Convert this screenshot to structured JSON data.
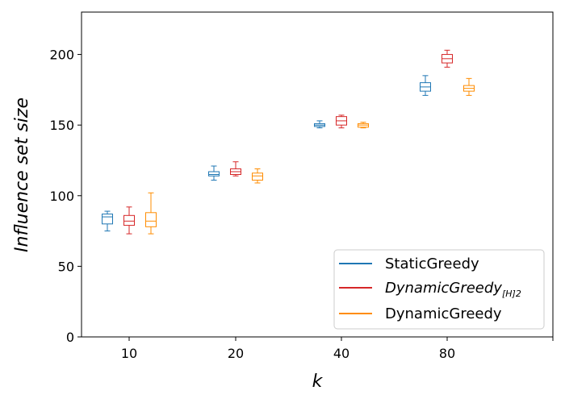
{
  "chart_data": {
    "type": "box",
    "xlabel": "k",
    "ylabel": "Influence set size",
    "ylim": [
      0,
      230
    ],
    "y_ticks": [
      0,
      50,
      100,
      150,
      200
    ],
    "categories": [
      "10",
      "20",
      "40",
      "80"
    ],
    "grid": false,
    "legend_position": "bottom-right",
    "series": [
      {
        "name": "StaticGreedy",
        "color": "#1f77b4",
        "boxes": [
          {
            "whisker_low": 75,
            "q1": 80,
            "median": 85,
            "q3": 87,
            "whisker_high": 89
          },
          {
            "whisker_low": 111,
            "q1": 114,
            "median": 115,
            "q3": 117,
            "whisker_high": 121
          },
          {
            "whisker_low": 148,
            "q1": 149,
            "median": 150,
            "q3": 151,
            "whisker_high": 153
          },
          {
            "whisker_low": 171,
            "q1": 174,
            "median": 177,
            "q3": 180,
            "whisker_high": 185
          }
        ]
      },
      {
        "name": "DynamicGreedy",
        "name_subscript": "[H]2",
        "color": "#d62728",
        "boxes": [
          {
            "whisker_low": 73,
            "q1": 79,
            "median": 82,
            "q3": 86,
            "whisker_high": 92
          },
          {
            "whisker_low": 114,
            "q1": 115,
            "median": 117,
            "q3": 119,
            "whisker_high": 124
          },
          {
            "whisker_low": 148,
            "q1": 150,
            "median": 153,
            "q3": 156,
            "whisker_high": 157
          },
          {
            "whisker_low": 191,
            "q1": 194,
            "median": 197,
            "q3": 200,
            "whisker_high": 203
          }
        ]
      },
      {
        "name": "DynamicGreedy",
        "color": "#ff8c00",
        "boxes": [
          {
            "whisker_low": 73,
            "q1": 78,
            "median": 82,
            "q3": 88,
            "whisker_high": 102
          },
          {
            "whisker_low": 109,
            "q1": 111,
            "median": 114,
            "q3": 116,
            "whisker_high": 119
          },
          {
            "whisker_low": 148,
            "q1": 148.5,
            "median": 150,
            "q3": 151,
            "whisker_high": 152
          },
          {
            "whisker_low": 171,
            "q1": 174,
            "median": 176,
            "q3": 178,
            "whisker_high": 183
          }
        ]
      }
    ]
  }
}
